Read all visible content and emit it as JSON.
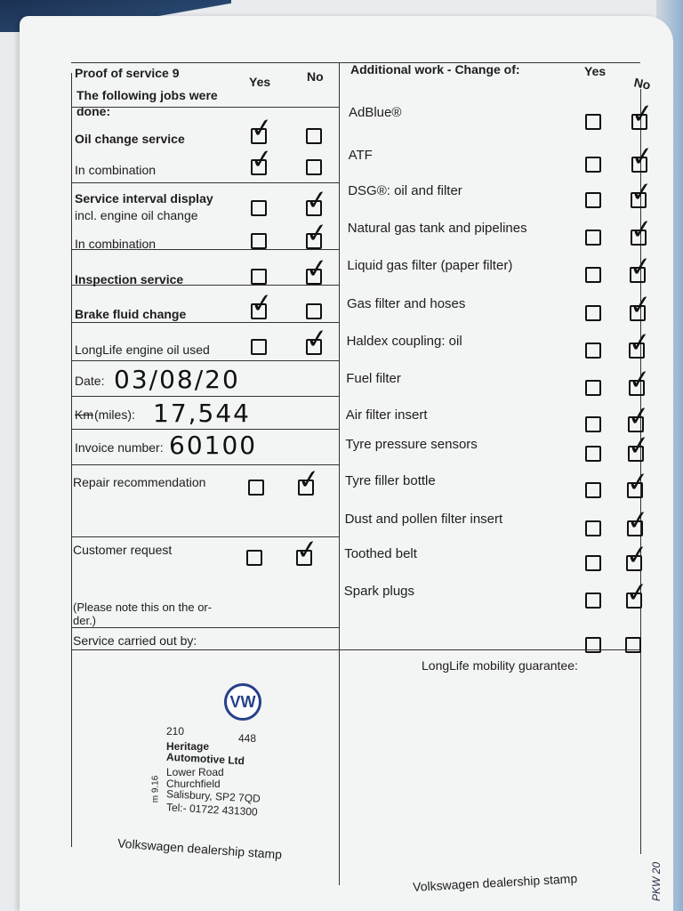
{
  "left": {
    "title": "Proof of service 9",
    "subtitle": "The following jobs were done:",
    "yes_label": "Yes",
    "no_label": "No",
    "jobs": [
      {
        "label": "Oil change service",
        "bold": true,
        "checked": "yes"
      },
      {
        "label": "In combination",
        "bold": false,
        "checked": "yes"
      },
      {
        "label": "Service interval display",
        "sub": "incl. engine oil change",
        "bold": true,
        "checked": "no"
      },
      {
        "label": "In combination",
        "bold": false,
        "checked": "no"
      },
      {
        "label": "Inspection service",
        "bold": true,
        "checked": "no"
      },
      {
        "label": "Brake fluid change",
        "bold": true,
        "checked": "yes"
      },
      {
        "label": "LongLife engine oil used",
        "bold": false,
        "checked": "no"
      }
    ],
    "date_label": "Date:",
    "date_value": "03/08/20",
    "km_struck": "Km",
    "miles_label": "(miles):",
    "miles_value": "17,544",
    "invoice_label": "Invoice number:",
    "invoice_value": "60100",
    "repair_label": "Repair recommendation",
    "repair_checked": "no",
    "customer_label": "Customer request",
    "customer_checked": "no",
    "note": "(Please note this on the or-",
    "note2": "der.)",
    "carried_out": "Service carried out by:",
    "stamp_caption": "Volkswagen dealership stamp"
  },
  "stamp": {
    "logo": "VW",
    "code1": "210",
    "code2": "448",
    "name1": "Heritage",
    "name2": "Automotive Ltd",
    "addr1": "Lower Road",
    "addr2": "Churchfield",
    "addr3": "Salisbury, SP2 7QD",
    "tel": "Tel:- 01722 431300",
    "side": "m 9.16"
  },
  "right": {
    "title": "Additional work - Change of:",
    "yes_label": "Yes",
    "no_label": "No",
    "items": [
      {
        "label": "AdBlue®",
        "checked": "no"
      },
      {
        "label": "ATF",
        "checked": "no"
      },
      {
        "label": "DSG®: oil and filter",
        "checked": "no"
      },
      {
        "label": "Natural gas tank and pipelines",
        "checked": "no"
      },
      {
        "label": "Liquid gas filter (paper filter)",
        "checked": "no"
      },
      {
        "label": "Gas filter and hoses",
        "checked": "no"
      },
      {
        "label": "Haldex coupling: oil",
        "checked": "no"
      },
      {
        "label": "Fuel filter",
        "checked": "no"
      },
      {
        "label": "Air filter insert",
        "checked": "no"
      },
      {
        "label": "Tyre pressure sensors",
        "checked": "no"
      },
      {
        "label": "Tyre filler bottle",
        "checked": "no"
      },
      {
        "label": "Dust and pollen filter insert",
        "checked": "no"
      },
      {
        "label": "Toothed belt",
        "checked": "no"
      },
      {
        "label": "Spark plugs",
        "checked": "no"
      },
      {
        "label": "",
        "checked": "none"
      }
    ],
    "guarantee": "LongLife mobility guarantee:",
    "stamp_caption": "Volkswagen dealership stamp"
  },
  "page_code": "PKW 20"
}
